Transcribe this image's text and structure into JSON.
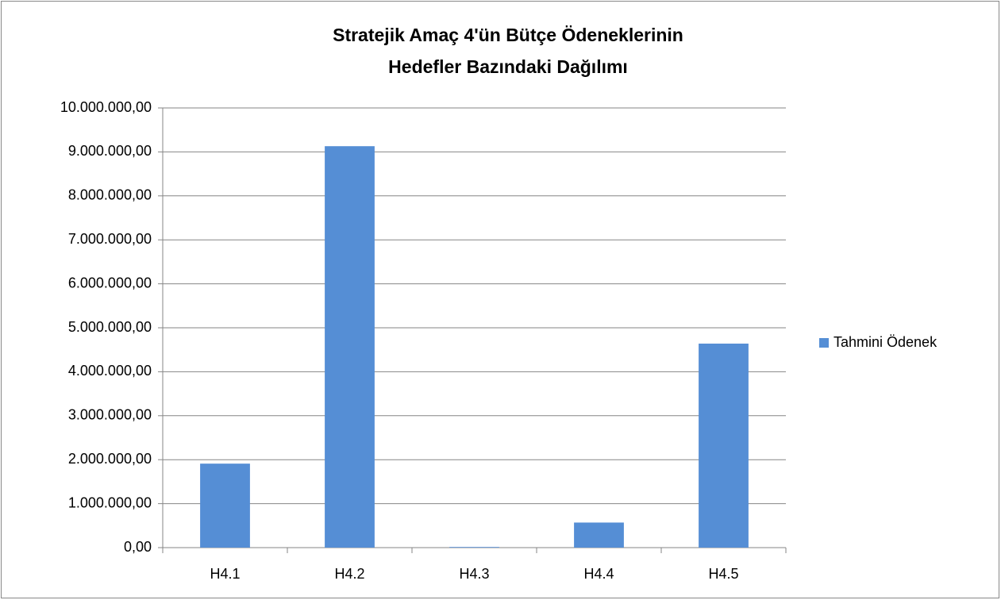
{
  "chart_data": {
    "type": "bar",
    "title": [
      "Stratejik Amaç 4'ün Bütçe Ödeneklerinin",
      "Hedefler Bazındaki Dağılımı"
    ],
    "categories": [
      "H4.1",
      "H4.2",
      "H4.3",
      "H4.4",
      "H4.5"
    ],
    "series": [
      {
        "name": "Tahmini Ödenek",
        "color": "#558ed5",
        "values": [
          1910000,
          9130000,
          15000,
          570000,
          4640000
        ]
      }
    ],
    "ylim": [
      0,
      10000000
    ],
    "yticks": [
      {
        "value": 0,
        "label": "0,00"
      },
      {
        "value": 1000000,
        "label": "1.000.000,00"
      },
      {
        "value": 2000000,
        "label": "2.000.000,00"
      },
      {
        "value": 3000000,
        "label": "3.000.000,00"
      },
      {
        "value": 4000000,
        "label": "4.000.000,00"
      },
      {
        "value": 5000000,
        "label": "5.000.000,00"
      },
      {
        "value": 6000000,
        "label": "6.000.000,00"
      },
      {
        "value": 7000000,
        "label": "7.000.000,00"
      },
      {
        "value": 8000000,
        "label": "8.000.000,00"
      },
      {
        "value": 9000000,
        "label": "9.000.000,00"
      },
      {
        "value": 10000000,
        "label": "10.000.000,00"
      }
    ],
    "grid": true,
    "legend": "right"
  }
}
